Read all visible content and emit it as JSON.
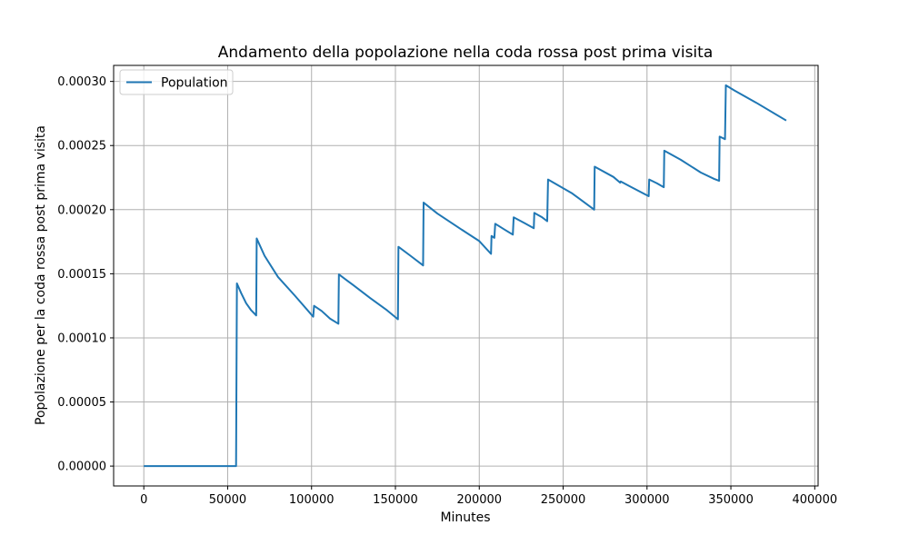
{
  "chart_data": {
    "type": "line",
    "title": "Andamento della popolazione nella coda rossa post prima visita",
    "xlabel": "Minutes",
    "ylabel": "Popolazione per la coda rossa post prima visita",
    "xlim": [
      -18000,
      402000
    ],
    "ylim": [
      -1.55e-05,
      0.0003125
    ],
    "x_ticks": [
      0,
      50000,
      100000,
      150000,
      200000,
      250000,
      300000,
      350000,
      400000
    ],
    "x_tick_labels": [
      "0",
      "50000",
      "100000",
      "150000",
      "200000",
      "250000",
      "300000",
      "350000",
      "400000"
    ],
    "y_ticks": [
      0,
      5e-05,
      0.0001,
      0.00015,
      0.0002,
      0.00025,
      0.0003
    ],
    "y_tick_labels": [
      "0.00000",
      "0.00005",
      "0.00010",
      "0.00015",
      "0.00020",
      "0.00025",
      "0.00030"
    ],
    "grid": true,
    "legend_position": "upper left",
    "series": [
      {
        "name": "Population",
        "color": "#1f77b4",
        "x": [
          0,
          55000,
          55500,
          58000,
          61000,
          64000,
          67000,
          67300,
          72000,
          80000,
          90000,
          101000,
          101500,
          106000,
          111000,
          116000,
          116300,
          125000,
          135000,
          145000,
          151500,
          151800,
          159000,
          166500,
          166800,
          175000,
          190000,
          200000,
          207000,
          207300,
          209000,
          209500,
          215000,
          220000,
          220500,
          227000,
          232500,
          232800,
          237500,
          240500,
          241000,
          255000,
          268500,
          268800,
          280000,
          284000,
          284300,
          290000,
          301000,
          301300,
          306000,
          310000,
          310300,
          320000,
          332000,
          340000,
          343000,
          343300,
          346500,
          347000,
          352000,
          365000,
          383000
        ],
        "y": [
          0,
          0,
          0.0001425,
          0.000135,
          0.000127,
          0.0001215,
          0.0001175,
          0.0001775,
          0.000164,
          0.0001475,
          0.000133,
          0.0001165,
          0.000125,
          0.000121,
          0.000115,
          0.000111,
          0.0001495,
          0.000141,
          0.000131,
          0.0001215,
          0.0001145,
          0.000171,
          0.000164,
          0.0001565,
          0.0002055,
          0.000197,
          0.000184,
          0.0001755,
          0.0001655,
          0.0001795,
          0.000178,
          0.000189,
          0.0001845,
          0.0001805,
          0.000194,
          0.0001895,
          0.0001855,
          0.0001975,
          0.000194,
          0.000191,
          0.0002235,
          0.000213,
          0.0002,
          0.0002335,
          0.0002255,
          0.000221,
          0.000222,
          0.000218,
          0.0002105,
          0.0002235,
          0.0002205,
          0.0002175,
          0.000246,
          0.000239,
          0.000229,
          0.000224,
          0.0002225,
          0.000257,
          0.000255,
          0.000297,
          0.000293,
          0.0002835,
          0.0002695
        ]
      }
    ]
  }
}
